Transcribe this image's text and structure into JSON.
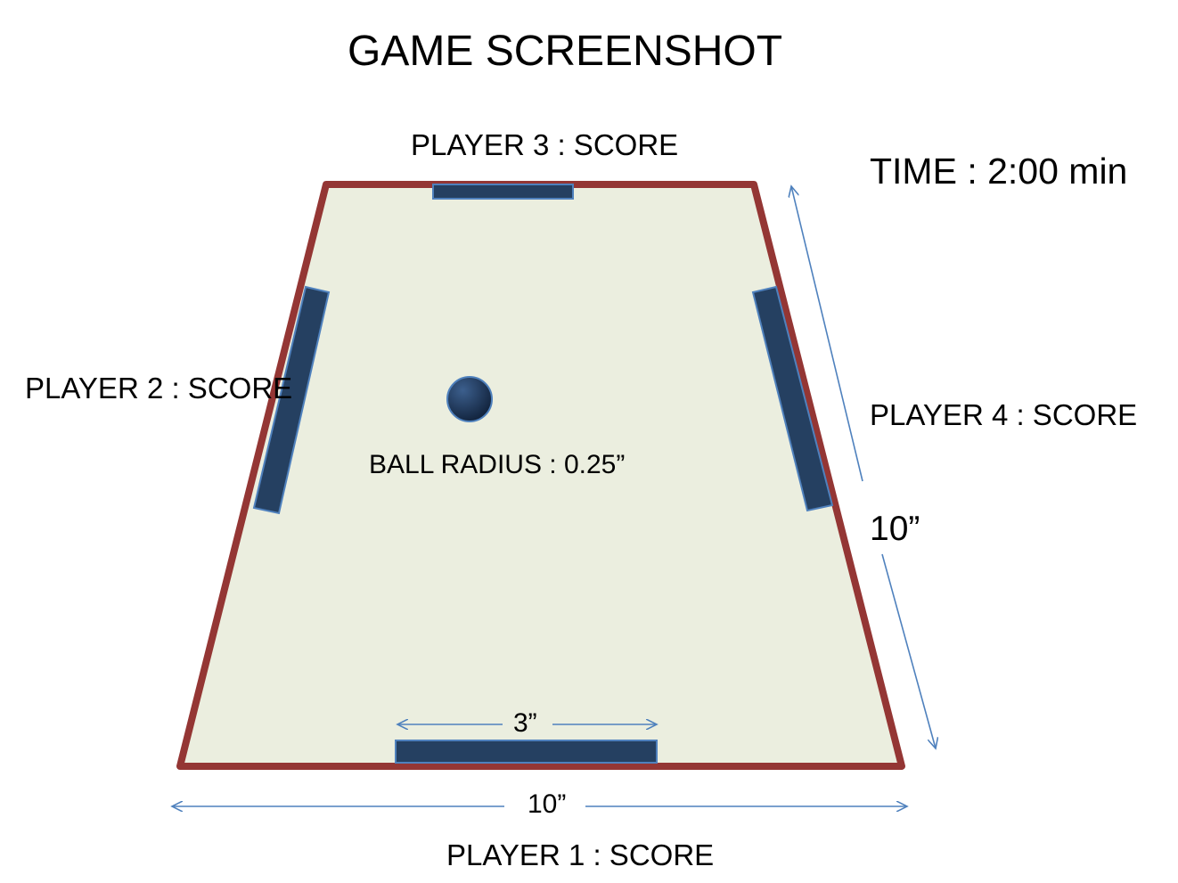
{
  "title": "GAME SCREENSHOT",
  "timer": {
    "label": "TIME : 2:00 min"
  },
  "players": {
    "p1": "PLAYER 1 : SCORE",
    "p2": "PLAYER 2 : SCORE",
    "p3": "PLAYER 3 : SCORE",
    "p4": "PLAYER 4 : SCORE"
  },
  "ball": {
    "label": "BALL RADIUS : 0.25”"
  },
  "dimensions": {
    "side": "10”",
    "base": "10”",
    "paddle": "3”"
  },
  "colors": {
    "field_fill": "#ebeedf",
    "border": "#943634",
    "paddle": "#254061",
    "paddle_outline": "#4f81bd",
    "arrow": "#4f81bd"
  }
}
